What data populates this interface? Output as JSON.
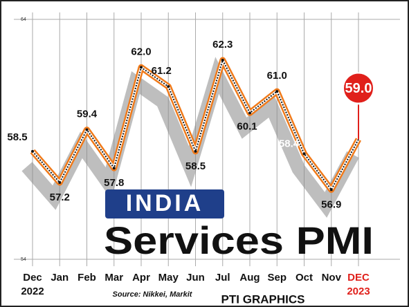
{
  "chart_data": {
    "type": "line",
    "title": "INDIA",
    "subtitle": "Services PMI",
    "source": "Source: Nikkei, Markit",
    "credit": "PTI GRAPHICS",
    "categories": [
      "Dec 2022",
      "Jan",
      "Feb",
      "Mar",
      "Apr",
      "May",
      "Jun",
      "Jul",
      "Aug",
      "Sep",
      "Oct",
      "Nov",
      "DEC 2023"
    ],
    "series": [
      {
        "name": "Services PMI",
        "color": "#f07a1a",
        "values": [
          58.5,
          57.2,
          59.4,
          57.8,
          62.0,
          61.2,
          58.5,
          62.3,
          60.1,
          61.0,
          58.4,
          56.9,
          59.0
        ],
        "value_labels": [
          "58.5",
          "57.2",
          "59.4",
          "57.8",
          "62.0",
          "61.2",
          "58.5",
          "62.3",
          "60.1",
          "61.0",
          "58.4",
          "56.9",
          "59.0"
        ]
      }
    ],
    "highlight_color": "#e0201b",
    "ylim": [
      54,
      64
    ],
    "yticks": [
      54,
      64
    ],
    "grid": true
  }
}
